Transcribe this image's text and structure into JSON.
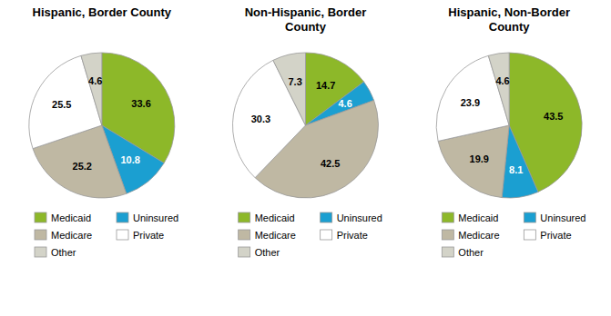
{
  "chart_data": [
    {
      "type": "pie",
      "title": "Hispanic, Border County",
      "categories": [
        "Medicaid",
        "Uninsured",
        "Medicare",
        "Private",
        "Other"
      ],
      "values": [
        33.6,
        10.8,
        25.2,
        25.5,
        4.6
      ],
      "colors": [
        "#8db829",
        "#1b9fd1",
        "#bfb8a3",
        "#ffffff",
        "#d3d3c8"
      ],
      "data_labels": true,
      "legend": "bottom"
    },
    {
      "type": "pie",
      "title": "Non-Hispanic, Border\nCounty",
      "categories": [
        "Medicaid",
        "Uninsured",
        "Medicare",
        "Private",
        "Other"
      ],
      "values": [
        14.7,
        4.6,
        42.5,
        30.3,
        7.3
      ],
      "colors": [
        "#8db829",
        "#1b9fd1",
        "#bfb8a3",
        "#ffffff",
        "#d3d3c8"
      ],
      "data_labels": true,
      "legend": "bottom"
    },
    {
      "type": "pie",
      "title": "Hispanic, Non-Border\nCounty",
      "categories": [
        "Medicaid",
        "Uninsured",
        "Medicare",
        "Private",
        "Other"
      ],
      "values": [
        43.5,
        8.1,
        19.9,
        23.9,
        4.6
      ],
      "colors": [
        "#8db829",
        "#1b9fd1",
        "#bfb8a3",
        "#ffffff",
        "#d3d3c8"
      ],
      "data_labels": true,
      "legend": "bottom"
    }
  ]
}
